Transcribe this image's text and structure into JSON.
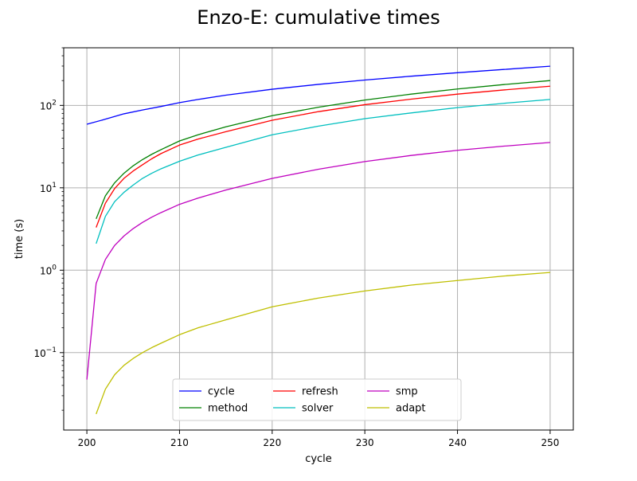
{
  "chart_data": {
    "type": "line",
    "title": "Enzo-E: cumulative times",
    "xlabel": "cycle",
    "ylabel": "time (s)",
    "xlim": [
      197.5,
      252.5
    ],
    "xticks": [
      200,
      210,
      220,
      230,
      240,
      250
    ],
    "ylim": [
      0.0115,
      500
    ],
    "yscale": "log",
    "yticks": [
      0.1,
      1,
      10,
      100
    ],
    "ytick_labels": [
      [
        "10",
        "−1"
      ],
      [
        "10",
        "0"
      ],
      [
        "10",
        "1"
      ],
      [
        "10",
        "2"
      ]
    ],
    "grid": true,
    "legend_position": "bottom-center",
    "legend_columns": 3,
    "series": [
      {
        "name": "cycle",
        "color": "#0000ff",
        "points": [
          [
            200,
            59
          ],
          [
            202,
            68
          ],
          [
            204,
            79
          ],
          [
            206,
            88
          ],
          [
            208,
            97
          ],
          [
            210,
            108
          ],
          [
            212,
            118
          ],
          [
            215,
            133
          ],
          [
            220,
            157
          ],
          [
            225,
            180
          ],
          [
            230,
            203
          ],
          [
            235,
            226
          ],
          [
            240,
            249
          ],
          [
            245,
            273
          ],
          [
            250,
            299
          ]
        ]
      },
      {
        "name": "method",
        "color": "#008000",
        "points": [
          [
            201,
            4.2
          ],
          [
            202,
            8.0
          ],
          [
            203,
            11.5
          ],
          [
            204,
            15.0
          ],
          [
            205,
            18.5
          ],
          [
            206,
            22
          ],
          [
            207,
            25.5
          ],
          [
            208,
            29
          ],
          [
            210,
            37
          ],
          [
            212,
            44
          ],
          [
            215,
            55
          ],
          [
            220,
            75
          ],
          [
            225,
            95
          ],
          [
            230,
            116
          ],
          [
            235,
            137
          ],
          [
            240,
            158
          ],
          [
            245,
            179
          ],
          [
            250,
            200
          ]
        ]
      },
      {
        "name": "refresh",
        "color": "#ff0000",
        "points": [
          [
            201,
            3.3
          ],
          [
            202,
            6.5
          ],
          [
            203,
            9.8
          ],
          [
            204,
            13
          ],
          [
            205,
            16
          ],
          [
            206,
            19
          ],
          [
            207,
            22.5
          ],
          [
            208,
            26
          ],
          [
            210,
            33
          ],
          [
            212,
            39
          ],
          [
            215,
            48
          ],
          [
            220,
            66
          ],
          [
            225,
            84
          ],
          [
            230,
            102
          ],
          [
            235,
            119
          ],
          [
            240,
            137
          ],
          [
            245,
            154
          ],
          [
            250,
            171
          ]
        ]
      },
      {
        "name": "solver",
        "color": "#00bfbf",
        "points": [
          [
            201,
            2.1
          ],
          [
            202,
            4.5
          ],
          [
            203,
            6.8
          ],
          [
            204,
            8.8
          ],
          [
            205,
            10.8
          ],
          [
            206,
            13
          ],
          [
            207,
            15
          ],
          [
            208,
            17
          ],
          [
            210,
            21
          ],
          [
            212,
            25
          ],
          [
            215,
            31
          ],
          [
            220,
            44
          ],
          [
            225,
            56
          ],
          [
            230,
            69
          ],
          [
            235,
            81
          ],
          [
            240,
            94
          ],
          [
            245,
            106
          ],
          [
            250,
            118
          ]
        ]
      },
      {
        "name": "smp",
        "color": "#bf00bf",
        "points": [
          [
            200,
            0.047
          ],
          [
            201,
            0.69
          ],
          [
            202,
            1.35
          ],
          [
            203,
            2.0
          ],
          [
            204,
            2.6
          ],
          [
            205,
            3.2
          ],
          [
            206,
            3.8
          ],
          [
            207,
            4.4
          ],
          [
            208,
            5.0
          ],
          [
            210,
            6.3
          ],
          [
            212,
            7.5
          ],
          [
            215,
            9.4
          ],
          [
            220,
            13
          ],
          [
            225,
            16.8
          ],
          [
            230,
            20.8
          ],
          [
            235,
            24.7
          ],
          [
            240,
            28.5
          ],
          [
            245,
            32
          ],
          [
            250,
            35.5
          ]
        ]
      },
      {
        "name": "adapt",
        "color": "#bfbf00",
        "points": [
          [
            201,
            0.018
          ],
          [
            202,
            0.036
          ],
          [
            203,
            0.054
          ],
          [
            204,
            0.07
          ],
          [
            205,
            0.085
          ],
          [
            206,
            0.1
          ],
          [
            207,
            0.115
          ],
          [
            208,
            0.13
          ],
          [
            210,
            0.165
          ],
          [
            212,
            0.2
          ],
          [
            215,
            0.25
          ],
          [
            220,
            0.36
          ],
          [
            225,
            0.46
          ],
          [
            230,
            0.56
          ],
          [
            235,
            0.66
          ],
          [
            240,
            0.75
          ],
          [
            245,
            0.85
          ],
          [
            250,
            0.94
          ]
        ]
      }
    ]
  }
}
